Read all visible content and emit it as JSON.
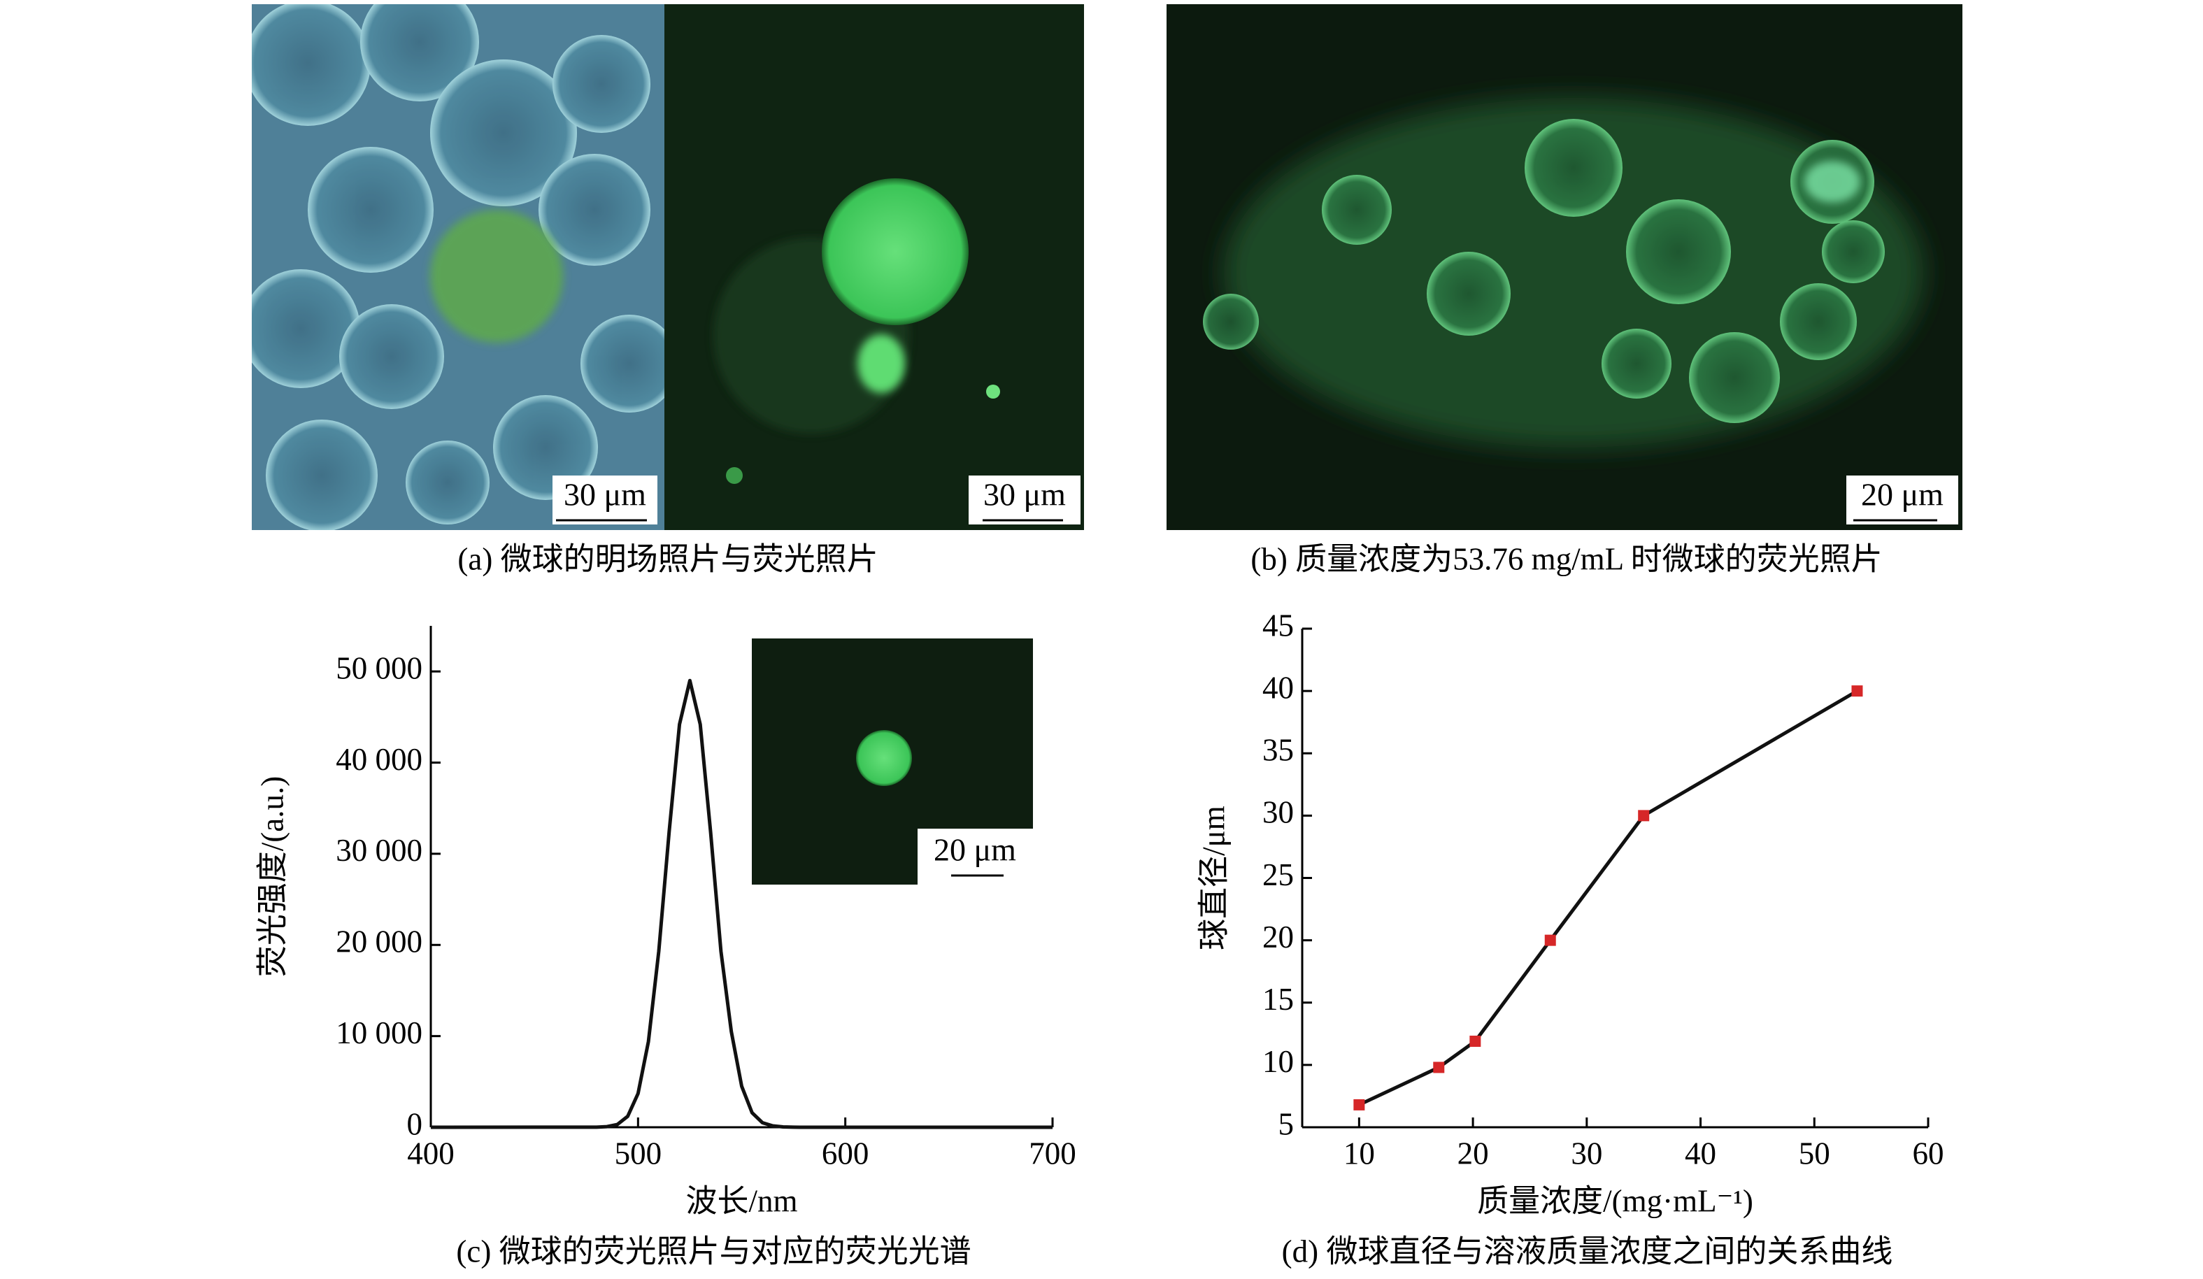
{
  "panels": {
    "a": {
      "caption": "(a) 微球的明场照片与荧光照片",
      "scale_labels": [
        "30 μm",
        "30 μm"
      ]
    },
    "b": {
      "caption": "(b) 质量浓度为53.76 mg/mL 时微球的荧光照片",
      "scale_label": "20 μm"
    }
  },
  "chart_data": [
    {
      "type": "line",
      "caption": "(c) 微球的荧光照片与对应的荧光光谱",
      "inset_scale_label": "20 μm",
      "x_label": "波长/nm",
      "y_label": "荧光强度/(a.u.)",
      "x": [
        400,
        480,
        485,
        490,
        495,
        500,
        505,
        510,
        515,
        520,
        525,
        530,
        535,
        540,
        545,
        550,
        555,
        560,
        565,
        570,
        575,
        580,
        700
      ],
      "series": [
        {
          "color": "#111111",
          "values": [
            0,
            10,
            70,
            300,
            1200,
            3700,
            9400,
            19300,
            32400,
            44200,
            49000,
            44200,
            32400,
            19300,
            10500,
            4500,
            1600,
            500,
            150,
            40,
            10,
            0,
            0
          ]
        }
      ],
      "xlim": [
        400,
        700
      ],
      "xticks": [
        400,
        500,
        600,
        700
      ],
      "ylim": [
        0,
        55000
      ],
      "yticks": [
        0,
        {
          "value": 10000,
          "label": "10 000"
        },
        {
          "value": 20000,
          "label": "20 000"
        },
        {
          "value": 30000,
          "label": "30 000"
        },
        {
          "value": 40000,
          "label": "40 000"
        },
        {
          "value": 50000,
          "label": "50 000"
        }
      ]
    },
    {
      "type": "line",
      "caption": "(d) 微球直径与溶液质量浓度之间的关系曲线",
      "x_label": "质量浓度/(mg·mL⁻¹)",
      "y_label": "球直径/μm",
      "x": [
        10,
        17,
        20.2,
        26.8,
        35,
        53.76
      ],
      "series": [
        {
          "color": "#111111",
          "marker_color": "#d62728",
          "values": [
            6.8,
            9.8,
            11.9,
            20,
            30,
            40
          ]
        }
      ],
      "xlim": [
        5,
        60
      ],
      "xticks": [
        10,
        20,
        30,
        40,
        50,
        60
      ],
      "ylim": [
        5,
        45
      ],
      "yticks": [
        5,
        10,
        15,
        20,
        25,
        30,
        35,
        40,
        45
      ]
    }
  ]
}
